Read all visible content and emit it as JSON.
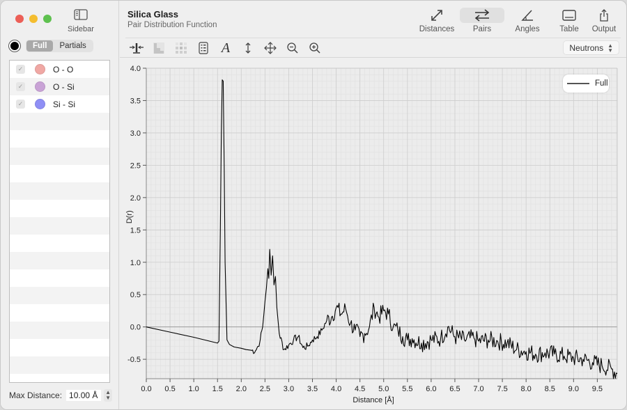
{
  "window": {
    "title": "Silica Glass",
    "subtitle": "Pair Distribution Function"
  },
  "sidebar": {
    "toggle_label": "Sidebar",
    "mode_color": "#000000",
    "segments": [
      {
        "label": "Full",
        "active": true
      },
      {
        "label": "Partials",
        "active": false
      }
    ],
    "pairs": [
      {
        "label": "O - O",
        "checked": true,
        "color": "#f0a8a4"
      },
      {
        "label": "O - Si",
        "checked": true,
        "color": "#c9a3d6"
      },
      {
        "label": "Si - Si",
        "checked": true,
        "color": "#8f8ff5"
      }
    ],
    "max_distance_label": "Max Distance:",
    "max_distance_value": "10.00 Å"
  },
  "toolbar": {
    "buttons": [
      {
        "label": "Distances",
        "icon": "diagonal-arrows-icon",
        "active": false
      },
      {
        "label": "Pairs",
        "icon": "swap-arrows-icon",
        "active": true
      },
      {
        "label": "Angles",
        "icon": "angle-icon",
        "active": false
      },
      {
        "label": "Table",
        "icon": "table-icon",
        "active": false
      },
      {
        "label": "Output",
        "icon": "share-icon",
        "active": false
      }
    ]
  },
  "plot_toolbar": {
    "tools": [
      "fit-horizontal-icon",
      "histogram-icon",
      "grid-icon",
      "list-icon",
      "font-icon",
      "vertical-resize-icon",
      "move-icon",
      "zoom-out-icon",
      "zoom-in-icon"
    ],
    "radiation_select": "Neutrons"
  },
  "chart_data": {
    "type": "line",
    "title": "",
    "xlabel": "Distance [Å]",
    "ylabel": "D(r)",
    "xlim": [
      0.0,
      9.92
    ],
    "ylim": [
      -0.8,
      4.0
    ],
    "x_ticks": [
      "0.0",
      "0.5",
      "1.0",
      "1.5",
      "2.0",
      "2.5",
      "3.0",
      "3.5",
      "4.0",
      "4.5",
      "5.0",
      "5.5",
      "6.0",
      "6.5",
      "7.0",
      "7.5",
      "8.0",
      "8.5",
      "9.0",
      "9.5"
    ],
    "y_ticks": [
      "4.0",
      "3.5",
      "3.0",
      "2.5",
      "2.0",
      "1.5",
      "1.0",
      "0.5",
      "0.0",
      "-0.5"
    ],
    "grid": true,
    "legend": {
      "position": "top-right",
      "entries": [
        "Full"
      ]
    },
    "series": [
      {
        "name": "Full",
        "color": "#000000",
        "points": [
          [
            0.0,
            0.0
          ],
          [
            0.5,
            -0.08
          ],
          [
            1.0,
            -0.16
          ],
          [
            1.5,
            -0.25
          ],
          [
            1.53,
            -0.22
          ],
          [
            1.56,
            1.5
          ],
          [
            1.58,
            3.0
          ],
          [
            1.6,
            3.82
          ],
          [
            1.62,
            3.8
          ],
          [
            1.64,
            2.5
          ],
          [
            1.66,
            1.0
          ],
          [
            1.7,
            -0.2
          ],
          [
            1.75,
            -0.27
          ],
          [
            1.85,
            -0.31
          ],
          [
            2.0,
            -0.33
          ],
          [
            2.1,
            -0.35
          ],
          [
            2.2,
            -0.36
          ],
          [
            2.3,
            -0.37
          ],
          [
            2.35,
            -0.3
          ],
          [
            2.4,
            -0.2
          ],
          [
            2.45,
            0.0
          ],
          [
            2.5,
            0.4
          ],
          [
            2.53,
            0.6
          ],
          [
            2.56,
            0.9
          ],
          [
            2.58,
            0.75
          ],
          [
            2.6,
            1.2
          ],
          [
            2.63,
            0.8
          ],
          [
            2.66,
            1.1
          ],
          [
            2.69,
            0.65
          ],
          [
            2.72,
            0.78
          ],
          [
            2.75,
            0.3
          ],
          [
            2.8,
            -0.1
          ],
          [
            2.9,
            -0.35
          ],
          [
            3.0,
            -0.28
          ],
          [
            3.1,
            -0.2
          ],
          [
            3.2,
            -0.15
          ],
          [
            3.3,
            -0.32
          ],
          [
            3.4,
            -0.3
          ],
          [
            3.5,
            -0.2
          ],
          [
            3.6,
            -0.15
          ],
          [
            3.7,
            -0.05
          ],
          [
            3.8,
            0.1
          ],
          [
            3.9,
            0.15
          ],
          [
            4.0,
            0.3
          ],
          [
            4.1,
            0.2
          ],
          [
            4.2,
            0.28
          ],
          [
            4.3,
            0.05
          ],
          [
            4.4,
            -0.05
          ],
          [
            4.5,
            -0.15
          ],
          [
            4.6,
            -0.1
          ],
          [
            4.7,
            0.0
          ],
          [
            4.8,
            0.3
          ],
          [
            4.9,
            0.15
          ],
          [
            5.0,
            0.25
          ],
          [
            5.1,
            0.2
          ],
          [
            5.2,
            0.0
          ],
          [
            5.3,
            -0.05
          ],
          [
            5.4,
            -0.15
          ],
          [
            5.5,
            -0.2
          ],
          [
            5.6,
            -0.18
          ],
          [
            5.8,
            -0.25
          ],
          [
            6.0,
            -0.2
          ],
          [
            6.2,
            -0.18
          ],
          [
            6.35,
            0.0
          ],
          [
            6.5,
            -0.15
          ],
          [
            6.7,
            -0.2
          ],
          [
            6.9,
            -0.17
          ],
          [
            7.0,
            -0.22
          ],
          [
            7.2,
            -0.2
          ],
          [
            7.4,
            -0.22
          ],
          [
            7.6,
            -0.25
          ],
          [
            7.8,
            -0.35
          ],
          [
            8.0,
            -0.38
          ],
          [
            8.2,
            -0.42
          ],
          [
            8.4,
            -0.4
          ],
          [
            8.6,
            -0.42
          ],
          [
            8.8,
            -0.45
          ],
          [
            9.0,
            -0.48
          ],
          [
            9.2,
            -0.5
          ],
          [
            9.4,
            -0.55
          ],
          [
            9.6,
            -0.6
          ],
          [
            9.8,
            -0.65
          ],
          [
            9.92,
            -0.72
          ]
        ]
      }
    ]
  }
}
